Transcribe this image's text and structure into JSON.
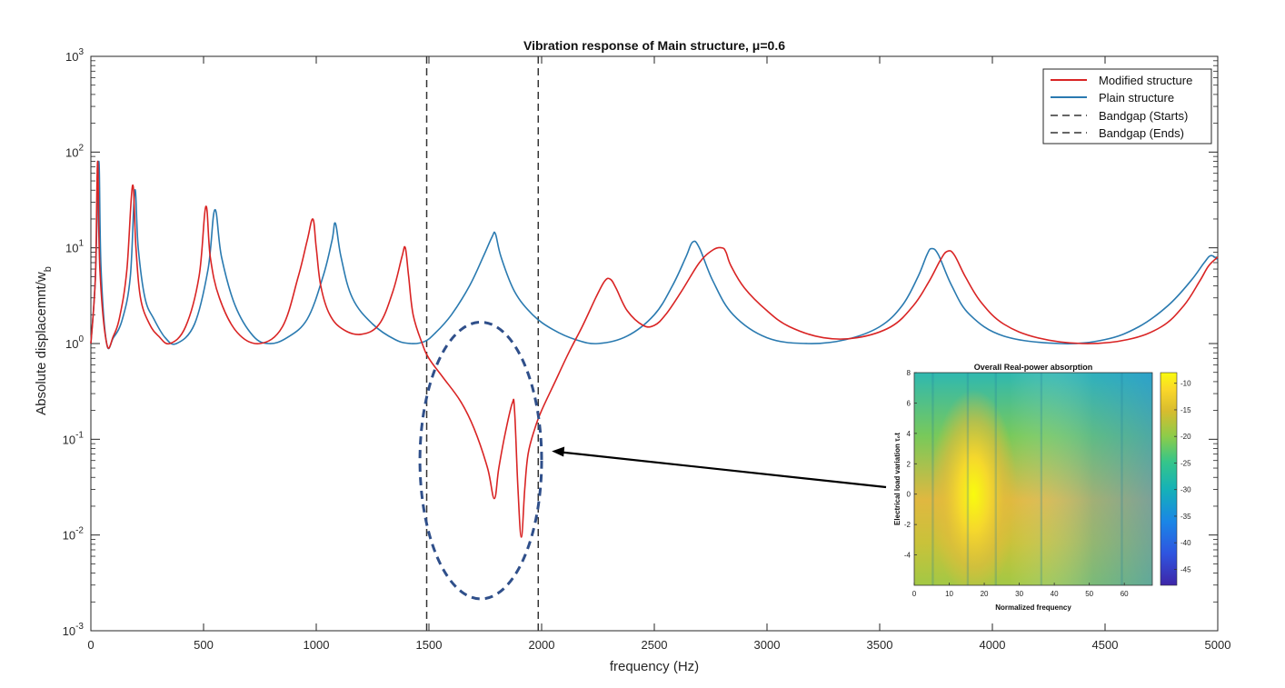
{
  "chart_data": [
    {
      "type": "line",
      "title": "Vibration response of Main structure, μ=0.6",
      "xlabel": "frequency (Hz)",
      "ylabel": "Absolute displacemnt/w",
      "ylabel_sub": "b",
      "xlim": [
        0,
        5000
      ],
      "ylim": [
        0.001,
        1000
      ],
      "yscale": "log",
      "x_ticks": [
        0,
        500,
        1000,
        1500,
        2000,
        2500,
        3000,
        3500,
        4000,
        4500,
        5000
      ],
      "y_ticks": [
        {
          "value": 0.001,
          "base": "10",
          "exp": "-3"
        },
        {
          "value": 0.01,
          "base": "10",
          "exp": "-2"
        },
        {
          "value": 0.1,
          "base": "10",
          "exp": "-1"
        },
        {
          "value": 1,
          "base": "10",
          "exp": "0"
        },
        {
          "value": 10,
          "base": "10",
          "exp": "1"
        },
        {
          "value": 100,
          "base": "10",
          "exp": "2"
        },
        {
          "value": 1000,
          "base": "10",
          "exp": "3"
        }
      ],
      "legend_position": "top-right",
      "colors": {
        "modified": "#d92424",
        "plain": "#2a7ab0",
        "bandgap": "#333333",
        "ellipse": "#2f4f8a",
        "arrow": "#000000"
      },
      "series": [
        {
          "name": "Modified structure",
          "x": [
            0,
            20,
            30,
            40,
            70,
            100,
            130,
            160,
            185,
            200,
            220,
            260,
            300,
            350,
            420,
            480,
            510,
            530,
            570,
            650,
            750,
            850,
            920,
            960,
            985,
            1000,
            1020,
            1060,
            1120,
            1200,
            1280,
            1340,
            1380,
            1395,
            1410,
            1430,
            1470,
            1500,
            1560,
            1640,
            1700,
            1760,
            1790,
            1810,
            1840,
            1870,
            1880,
            1895,
            1910,
            1925,
            1940,
            1970,
            2000,
            2060,
            2120,
            2180,
            2240,
            2280,
            2305,
            2330,
            2380,
            2450,
            2500,
            2550,
            2620,
            2700,
            2760,
            2800,
            2818,
            2840,
            2900,
            3000,
            3100,
            3250,
            3400,
            3550,
            3650,
            3720,
            3770,
            3800,
            3830,
            3880,
            3950,
            4050,
            4200,
            4400,
            4600,
            4750,
            4850,
            4920,
            4960,
            5000
          ],
          "y": [
            1.0,
            5,
            80,
            6,
            1.0,
            1.2,
            2.0,
            6,
            45,
            10,
            3,
            1.6,
            1.2,
            1.0,
            1.5,
            5,
            27,
            8,
            3.0,
            1.3,
            1.0,
            1.5,
            5,
            12,
            20,
            10,
            4,
            2.0,
            1.4,
            1.25,
            1.6,
            3.5,
            8,
            10,
            5,
            2.0,
            1.0,
            0.7,
            0.45,
            0.25,
            0.13,
            0.05,
            0.024,
            0.05,
            0.12,
            0.24,
            0.2,
            0.03,
            0.0095,
            0.03,
            0.07,
            0.13,
            0.2,
            0.4,
            0.8,
            1.5,
            3.0,
            4.5,
            4.7,
            3.8,
            2.2,
            1.55,
            1.55,
            2.0,
            3.5,
            7,
            9.5,
            10,
            9,
            6.5,
            3.8,
            2.2,
            1.5,
            1.15,
            1.15,
            1.5,
            2.5,
            4.5,
            7.5,
            9.2,
            8.5,
            5,
            2.7,
            1.6,
            1.15,
            1.0,
            1.1,
            1.5,
            2.5,
            4.5,
            6.5,
            8
          ]
        },
        {
          "name": "Plain structure",
          "x": [
            0,
            20,
            35,
            45,
            70,
            100,
            140,
            175,
            195,
            210,
            240,
            280,
            330,
            380,
            460,
            520,
            550,
            580,
            640,
            720,
            790,
            870,
            960,
            1030,
            1070,
            1085,
            1110,
            1160,
            1250,
            1350,
            1420,
            1480,
            1530,
            1600,
            1680,
            1740,
            1780,
            1795,
            1820,
            1880,
            1960,
            2050,
            2150,
            2250,
            2380,
            2500,
            2580,
            2640,
            2670,
            2700,
            2760,
            2850,
            3000,
            3180,
            3350,
            3500,
            3600,
            3670,
            3710,
            3730,
            3760,
            3820,
            3900,
            4050,
            4300,
            4500,
            4650,
            4780,
            4880,
            4940,
            4970,
            5000
          ],
          "y": [
            1.0,
            5,
            80,
            6,
            1.0,
            1.15,
            1.8,
            5,
            40,
            10,
            3,
            1.8,
            1.15,
            1.0,
            1.6,
            6,
            25,
            8,
            2.5,
            1.2,
            1.0,
            1.15,
            1.8,
            5,
            12,
            18,
            8,
            3.0,
            1.6,
            1.1,
            1.0,
            1.05,
            1.3,
            2.0,
            4.0,
            8,
            13,
            14,
            8,
            3.5,
            2.0,
            1.4,
            1.1,
            1.0,
            1.2,
            2.0,
            4.0,
            8,
            11.5,
            10,
            4.5,
            2.0,
            1.15,
            1.0,
            1.1,
            1.5,
            2.5,
            5,
            8.5,
            9.8,
            8.5,
            4.0,
            2.0,
            1.2,
            1.0,
            1.1,
            1.5,
            2.5,
            4.5,
            7,
            8.3,
            7.5
          ]
        },
        {
          "name": "Bandgap (Starts)",
          "x": [
            1490,
            1490
          ],
          "y": [
            0.001,
            1000
          ]
        },
        {
          "name": "Bandgap (Ends)",
          "x": [
            1985,
            1985
          ],
          "y": [
            0.001,
            1000
          ]
        }
      ]
    },
    {
      "type": "heatmap",
      "title": "Overall Real-power absorption",
      "xlabel": "Normalized frequency",
      "ylabel": "Electrical load variation τ₀t",
      "xlim": [
        0,
        68
      ],
      "ylim": [
        -6,
        8
      ],
      "x_ticks": [
        0,
        10,
        20,
        30,
        40,
        50,
        60
      ],
      "y_ticks": [
        -4,
        -2,
        0,
        2,
        4,
        6,
        8
      ],
      "colorbar_ticks": [
        -10,
        -15,
        -20,
        -25,
        -30,
        -35,
        -40,
        -45
      ],
      "clim": [
        -48,
        -8
      ],
      "peak_x": 17,
      "peak_y": 0,
      "colormap": [
        "#3e26a8",
        "#2f55e0",
        "#1a86e6",
        "#15b1b8",
        "#35c58a",
        "#8ccc4a",
        "#d8bc2e",
        "#fad72a",
        "#f9fb0e"
      ]
    }
  ]
}
